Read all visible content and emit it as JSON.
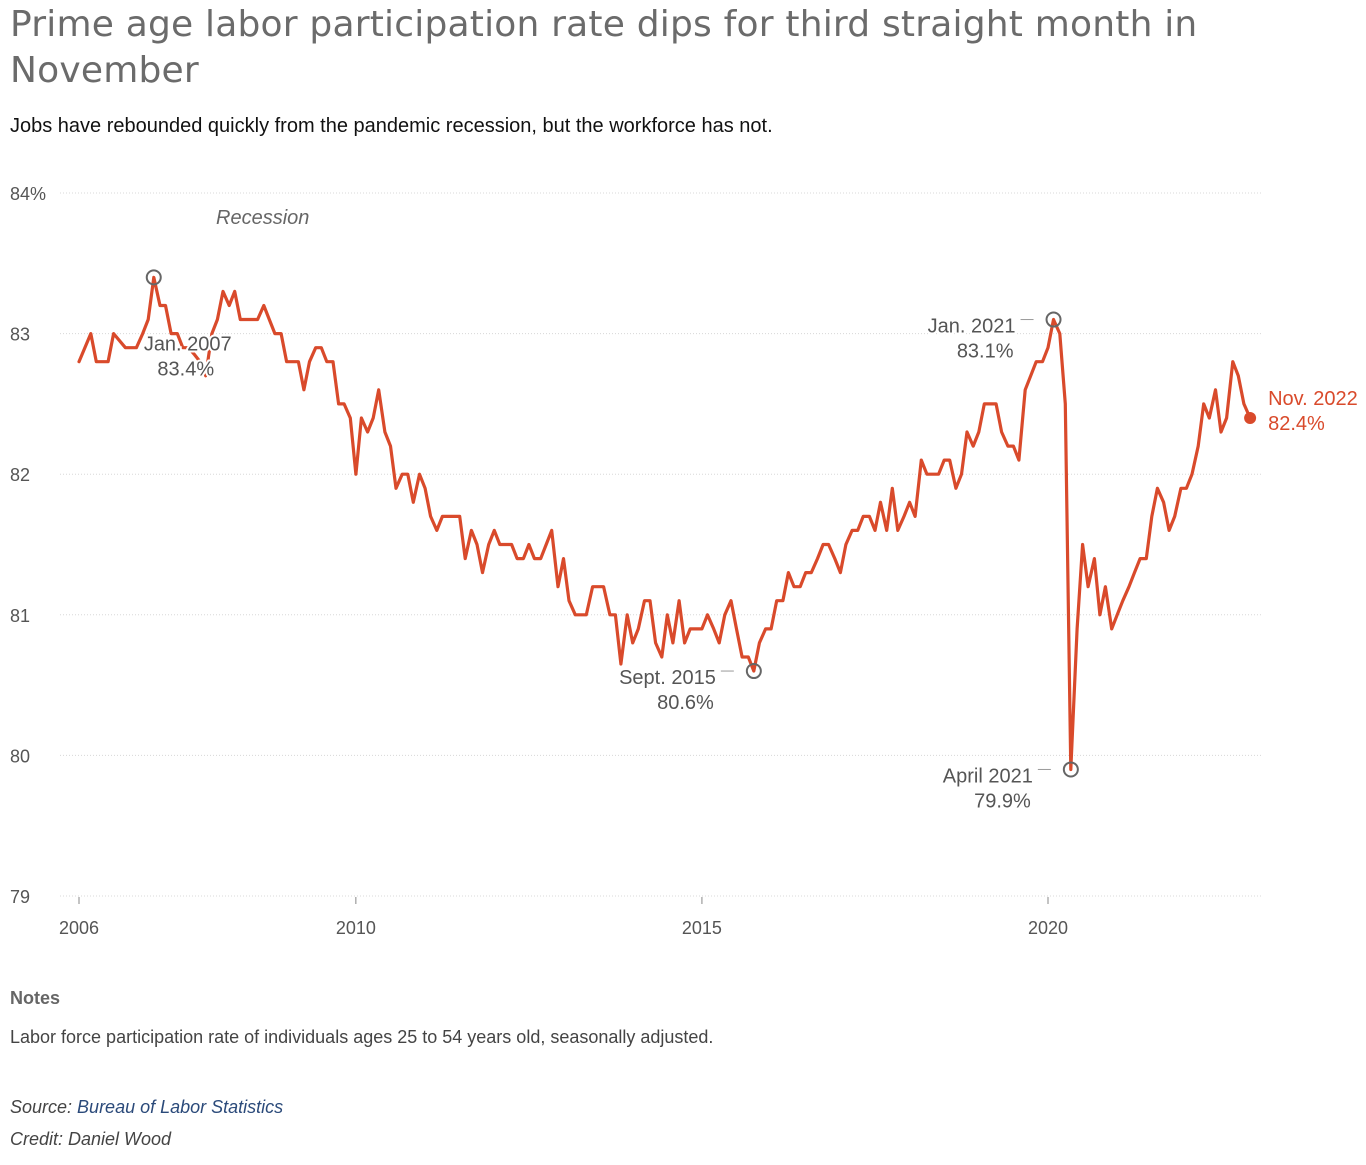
{
  "title": "Prime age labor participation rate dips for third straight month in November",
  "subtitle": "Jobs have rebounded quickly from the pandemic recession, but the workforce has not.",
  "notes": {
    "heading": "Notes",
    "text": "Labor force participation rate of individuals ages 25 to 54 years old, seasonally adjusted."
  },
  "source": {
    "label": "Source: ",
    "link_text": "Bureau of Labor Statistics"
  },
  "credit": "Credit: Daniel Wood",
  "colors": {
    "line": "#d94a2b",
    "grid": "#d8d8d8",
    "axis_text": "#555555",
    "annotation_text": "#555555",
    "link": "#2b4a7a"
  },
  "chart_data": {
    "type": "line",
    "title": "Prime age labor participation rate dips for third straight month in November",
    "subtitle": "Jobs have rebounded quickly from the pandemic recession, but the workforce has not.",
    "xlabel": "",
    "ylabel": "",
    "ylim": [
      79,
      84
    ],
    "y_ticks": [
      {
        "value": 84,
        "label": "84%"
      },
      {
        "value": 83,
        "label": "83"
      },
      {
        "value": 82,
        "label": "82"
      },
      {
        "value": 81,
        "label": "81"
      },
      {
        "value": 80,
        "label": "80"
      },
      {
        "value": 79,
        "label": "79"
      }
    ],
    "x_ticks": [
      {
        "value": 2006,
        "label": "2006"
      },
      {
        "value": 2010,
        "label": "2010"
      },
      {
        "value": 2015,
        "label": "2015"
      },
      {
        "value": 2020,
        "label": "2020"
      }
    ],
    "xlim": [
      2006,
      2023.2
    ],
    "grid": true,
    "recession_label": "Recession",
    "series": [
      {
        "color": "#d94a2b",
        "points": [
          [
            2006.0,
            82.8
          ],
          [
            2006.17,
            83.0
          ],
          [
            2006.25,
            82.8
          ],
          [
            2006.42,
            82.8
          ],
          [
            2006.5,
            83.0
          ],
          [
            2006.67,
            82.9
          ],
          [
            2006.83,
            82.9
          ],
          [
            2006.92,
            83.0
          ],
          [
            2007.0,
            83.1
          ],
          [
            2007.08,
            83.4
          ],
          [
            2007.17,
            83.2
          ],
          [
            2007.25,
            83.2
          ],
          [
            2007.33,
            83.0
          ],
          [
            2007.42,
            83.0
          ],
          [
            2007.5,
            82.9
          ],
          [
            2007.58,
            82.9
          ],
          [
            2007.67,
            82.85
          ],
          [
            2007.75,
            82.8
          ],
          [
            2007.83,
            82.7
          ],
          [
            2007.92,
            83.0
          ],
          [
            2008.0,
            83.1
          ],
          [
            2008.08,
            83.3
          ],
          [
            2008.17,
            83.2
          ],
          [
            2008.25,
            83.3
          ],
          [
            2008.33,
            83.1
          ],
          [
            2008.5,
            83.1
          ],
          [
            2008.58,
            83.1
          ],
          [
            2008.67,
            83.2
          ],
          [
            2008.75,
            83.1
          ],
          [
            2008.83,
            83.0
          ],
          [
            2008.92,
            83.0
          ],
          [
            2009.0,
            82.8
          ],
          [
            2009.17,
            82.8
          ],
          [
            2009.25,
            82.6
          ],
          [
            2009.33,
            82.8
          ],
          [
            2009.42,
            82.9
          ],
          [
            2009.5,
            82.9
          ],
          [
            2009.58,
            82.8
          ],
          [
            2009.67,
            82.8
          ],
          [
            2009.75,
            82.5
          ],
          [
            2009.83,
            82.5
          ],
          [
            2009.92,
            82.4
          ],
          [
            2010.0,
            82.0
          ],
          [
            2010.08,
            82.4
          ],
          [
            2010.17,
            82.3
          ],
          [
            2010.25,
            82.4
          ],
          [
            2010.33,
            82.6
          ],
          [
            2010.42,
            82.3
          ],
          [
            2010.5,
            82.2
          ],
          [
            2010.58,
            81.9
          ],
          [
            2010.67,
            82.0
          ],
          [
            2010.75,
            82.0
          ],
          [
            2010.83,
            81.8
          ],
          [
            2010.92,
            82.0
          ],
          [
            2011.0,
            81.9
          ],
          [
            2011.08,
            81.7
          ],
          [
            2011.17,
            81.6
          ],
          [
            2011.25,
            81.7
          ],
          [
            2011.33,
            81.7
          ],
          [
            2011.42,
            81.7
          ],
          [
            2011.5,
            81.7
          ],
          [
            2011.58,
            81.4
          ],
          [
            2011.67,
            81.6
          ],
          [
            2011.75,
            81.5
          ],
          [
            2011.83,
            81.3
          ],
          [
            2011.92,
            81.5
          ],
          [
            2012.0,
            81.6
          ],
          [
            2012.08,
            81.5
          ],
          [
            2012.17,
            81.5
          ],
          [
            2012.25,
            81.5
          ],
          [
            2012.33,
            81.4
          ],
          [
            2012.42,
            81.4
          ],
          [
            2012.5,
            81.5
          ],
          [
            2012.58,
            81.4
          ],
          [
            2012.67,
            81.4
          ],
          [
            2012.75,
            81.5
          ],
          [
            2012.83,
            81.6
          ],
          [
            2012.92,
            81.2
          ],
          [
            2013.0,
            81.4
          ],
          [
            2013.08,
            81.1
          ],
          [
            2013.17,
            81.0
          ],
          [
            2013.25,
            81.0
          ],
          [
            2013.33,
            81.0
          ],
          [
            2013.42,
            81.2
          ],
          [
            2013.5,
            81.2
          ],
          [
            2013.58,
            81.2
          ],
          [
            2013.67,
            81.0
          ],
          [
            2013.75,
            81.0
          ],
          [
            2013.83,
            80.65
          ],
          [
            2013.92,
            81.0
          ],
          [
            2014.0,
            80.8
          ],
          [
            2014.08,
            80.9
          ],
          [
            2014.17,
            81.1
          ],
          [
            2014.25,
            81.1
          ],
          [
            2014.33,
            80.8
          ],
          [
            2014.42,
            80.7
          ],
          [
            2014.5,
            81.0
          ],
          [
            2014.58,
            80.8
          ],
          [
            2014.67,
            81.1
          ],
          [
            2014.75,
            80.8
          ],
          [
            2014.83,
            80.9
          ],
          [
            2014.92,
            80.9
          ],
          [
            2015.0,
            80.9
          ],
          [
            2015.08,
            81.0
          ],
          [
            2015.17,
            80.9
          ],
          [
            2015.25,
            80.8
          ],
          [
            2015.33,
            81.0
          ],
          [
            2015.42,
            81.1
          ],
          [
            2015.5,
            80.9
          ],
          [
            2015.58,
            80.7
          ],
          [
            2015.67,
            80.7
          ],
          [
            2015.75,
            80.6
          ],
          [
            2015.83,
            80.8
          ],
          [
            2015.92,
            80.9
          ],
          [
            2016.0,
            80.9
          ],
          [
            2016.08,
            81.1
          ],
          [
            2016.17,
            81.1
          ],
          [
            2016.25,
            81.3
          ],
          [
            2016.33,
            81.2
          ],
          [
            2016.42,
            81.2
          ],
          [
            2016.5,
            81.3
          ],
          [
            2016.58,
            81.3
          ],
          [
            2016.67,
            81.4
          ],
          [
            2016.75,
            81.5
          ],
          [
            2016.83,
            81.5
          ],
          [
            2016.92,
            81.4
          ],
          [
            2017.0,
            81.3
          ],
          [
            2017.08,
            81.5
          ],
          [
            2017.17,
            81.6
          ],
          [
            2017.25,
            81.6
          ],
          [
            2017.33,
            81.7
          ],
          [
            2017.42,
            81.7
          ],
          [
            2017.5,
            81.6
          ],
          [
            2017.58,
            81.8
          ],
          [
            2017.67,
            81.6
          ],
          [
            2017.75,
            81.9
          ],
          [
            2017.83,
            81.6
          ],
          [
            2017.92,
            81.7
          ],
          [
            2018.0,
            81.8
          ],
          [
            2018.08,
            81.7
          ],
          [
            2018.17,
            82.1
          ],
          [
            2018.25,
            82.0
          ],
          [
            2018.33,
            82.0
          ],
          [
            2018.42,
            82.0
          ],
          [
            2018.5,
            82.1
          ],
          [
            2018.58,
            82.1
          ],
          [
            2018.67,
            81.9
          ],
          [
            2018.75,
            82.0
          ],
          [
            2018.83,
            82.3
          ],
          [
            2018.92,
            82.2
          ],
          [
            2019.0,
            82.3
          ],
          [
            2019.08,
            82.5
          ],
          [
            2019.17,
            82.5
          ],
          [
            2019.25,
            82.5
          ],
          [
            2019.33,
            82.3
          ],
          [
            2019.42,
            82.2
          ],
          [
            2019.5,
            82.2
          ],
          [
            2019.58,
            82.1
          ],
          [
            2019.67,
            82.6
          ],
          [
            2019.75,
            82.7
          ],
          [
            2019.83,
            82.8
          ],
          [
            2019.92,
            82.8
          ],
          [
            2020.0,
            82.9
          ],
          [
            2020.08,
            83.1
          ],
          [
            2020.17,
            83.0
          ],
          [
            2020.25,
            82.5
          ],
          [
            2020.33,
            79.9
          ],
          [
            2020.42,
            80.9
          ],
          [
            2020.5,
            81.5
          ],
          [
            2020.58,
            81.2
          ],
          [
            2020.67,
            81.4
          ],
          [
            2020.75,
            81.0
          ],
          [
            2020.83,
            81.2
          ],
          [
            2020.92,
            80.9
          ],
          [
            2021.0,
            81.0
          ],
          [
            2021.08,
            81.1
          ],
          [
            2021.17,
            81.2
          ],
          [
            2021.25,
            81.3
          ],
          [
            2021.33,
            81.4
          ],
          [
            2021.42,
            81.4
          ],
          [
            2021.5,
            81.7
          ],
          [
            2021.58,
            81.9
          ],
          [
            2021.67,
            81.8
          ],
          [
            2021.75,
            81.6
          ],
          [
            2021.83,
            81.7
          ],
          [
            2021.92,
            81.9
          ],
          [
            2022.0,
            81.9
          ],
          [
            2022.08,
            82.0
          ],
          [
            2022.17,
            82.2
          ],
          [
            2022.25,
            82.5
          ],
          [
            2022.33,
            82.4
          ],
          [
            2022.42,
            82.6
          ],
          [
            2022.5,
            82.3
          ],
          [
            2022.58,
            82.4
          ],
          [
            2022.67,
            82.8
          ],
          [
            2022.75,
            82.7
          ],
          [
            2022.83,
            82.5
          ],
          [
            2022.92,
            82.4
          ]
        ]
      }
    ],
    "annotations": [
      {
        "id": "jan-2007",
        "x": 2007.08,
        "y": 83.4,
        "label": "Jan. 2007",
        "value_label": "83.4%",
        "marker": "ring"
      },
      {
        "id": "sept-2015",
        "x": 2015.75,
        "y": 80.6,
        "label": "Sept. 2015",
        "value_label": "80.6%",
        "marker": "ring"
      },
      {
        "id": "jan-2021",
        "x": 2020.08,
        "y": 83.1,
        "label": "Jan. 2021",
        "value_label": "83.1%",
        "marker": "ring"
      },
      {
        "id": "april-2021",
        "x": 2020.33,
        "y": 79.9,
        "label": "April 2021",
        "value_label": "79.9%",
        "marker": "ring"
      },
      {
        "id": "nov-2022",
        "x": 2022.92,
        "y": 82.4,
        "label": "Nov. 2022",
        "value_label": "82.4%",
        "marker": "dot"
      }
    ]
  }
}
